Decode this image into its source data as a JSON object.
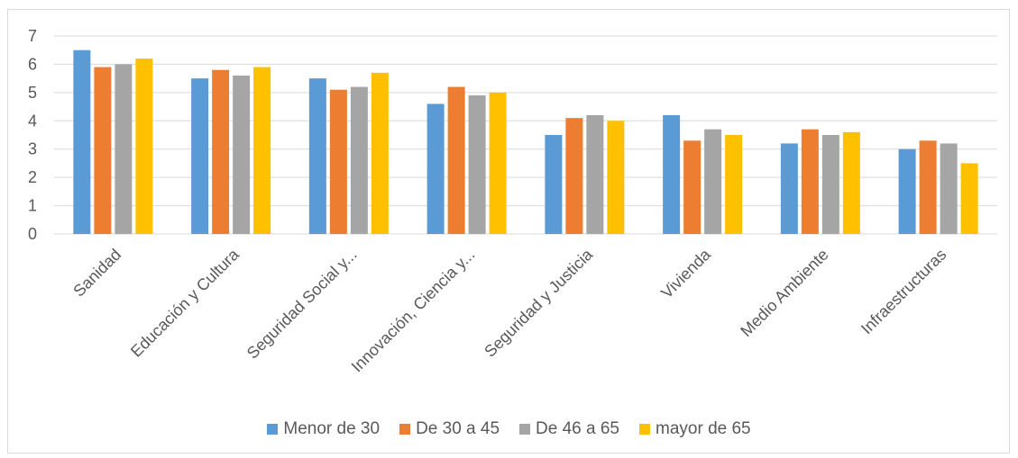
{
  "chart_data": {
    "type": "bar",
    "categories": [
      "Sanidad",
      "Educación y Cultura",
      "Seguridad Social y...",
      "Innovación, Ciencia y...",
      "Seguridad y Justicia",
      "Vivienda",
      "Medio Ambiente",
      "Infraestructuras"
    ],
    "series": [
      {
        "name": "Menor de 30",
        "color": "#5b9bd5",
        "values": [
          6.5,
          5.5,
          5.5,
          4.6,
          3.5,
          4.2,
          3.2,
          3.0
        ]
      },
      {
        "name": "De 30 a 45",
        "color": "#ed7d31",
        "values": [
          5.9,
          5.8,
          5.1,
          5.2,
          4.1,
          3.3,
          3.7,
          3.3
        ]
      },
      {
        "name": "De 46 a 65",
        "color": "#a5a5a5",
        "values": [
          6.0,
          5.6,
          5.2,
          4.9,
          4.2,
          3.7,
          3.5,
          3.2
        ]
      },
      {
        "name": "mayor de 65",
        "color": "#ffc000",
        "values": [
          6.2,
          5.9,
          5.7,
          5.0,
          4.0,
          3.5,
          3.6,
          2.5
        ]
      }
    ],
    "ylim": [
      0,
      7
    ],
    "yticks": [
      "0",
      "1",
      "2",
      "3",
      "4",
      "5",
      "6",
      "7"
    ],
    "grid": true,
    "legend_position": "bottom"
  }
}
